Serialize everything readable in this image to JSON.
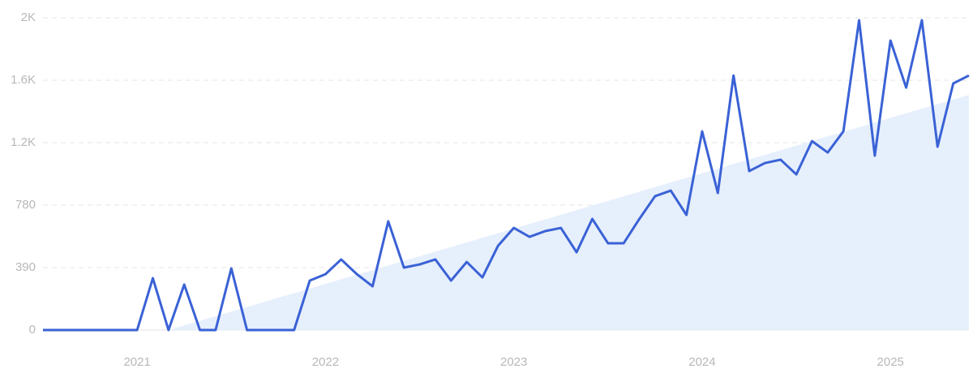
{
  "chart_data": {
    "type": "line",
    "categories": [
      null,
      null,
      null,
      null,
      null,
      null,
      "2021",
      null,
      null,
      null,
      null,
      null,
      null,
      null,
      null,
      null,
      null,
      null,
      "2022",
      null,
      null,
      null,
      null,
      null,
      null,
      null,
      null,
      null,
      null,
      null,
      "2023",
      null,
      null,
      null,
      null,
      null,
      null,
      null,
      null,
      null,
      null,
      null,
      "2024",
      null,
      null,
      null,
      null,
      null,
      null,
      null,
      null,
      null,
      null,
      null,
      "2025",
      null,
      null,
      null,
      null,
      null
    ],
    "series": [
      {
        "kind": "area",
        "color": "#e6effc",
        "values": [
          null,
          null,
          null,
          null,
          null,
          null,
          null,
          null,
          0,
          29,
          58,
          86,
          115,
          144,
          173,
          202,
          230,
          259,
          288,
          317,
          346,
          374,
          403,
          432,
          461,
          490,
          518,
          547,
          576,
          605,
          634,
          662,
          691,
          720,
          749,
          778,
          806,
          835,
          864,
          893,
          922,
          950,
          979,
          1008,
          1037,
          1066,
          1094,
          1123,
          1152,
          1181,
          1210,
          1238,
          1267,
          1296,
          1325,
          1354,
          1382,
          1411,
          1440,
          1469
        ]
      },
      {
        "kind": "line",
        "color": "#3a62d6",
        "values": [
          0,
          0,
          0,
          0,
          0,
          0,
          0,
          324,
          0,
          284,
          0,
          0,
          385,
          0,
          0,
          0,
          0,
          309,
          349,
          441,
          349,
          273,
          679,
          390,
          410,
          441,
          309,
          425,
          329,
          527,
          638,
          582,
          618,
          638,
          486,
          694,
          542,
          542,
          694,
          836,
          871,
          719,
          1241,
          856,
          1590,
          993,
          1043,
          1064,
          972,
          1180,
          1109,
          1241,
          1935,
          1089,
          1808,
          1514,
          1935,
          1145,
          1540,
          1590
        ]
      }
    ],
    "ylim": [
      0,
      1950
    ],
    "yticks": [
      0,
      390,
      780,
      {
        "value": 1170,
        "label": "1.2K"
      },
      {
        "value": 1560,
        "label": "1.6K"
      },
      {
        "value": 1950,
        "label": "2K"
      }
    ],
    "grid": true
  }
}
